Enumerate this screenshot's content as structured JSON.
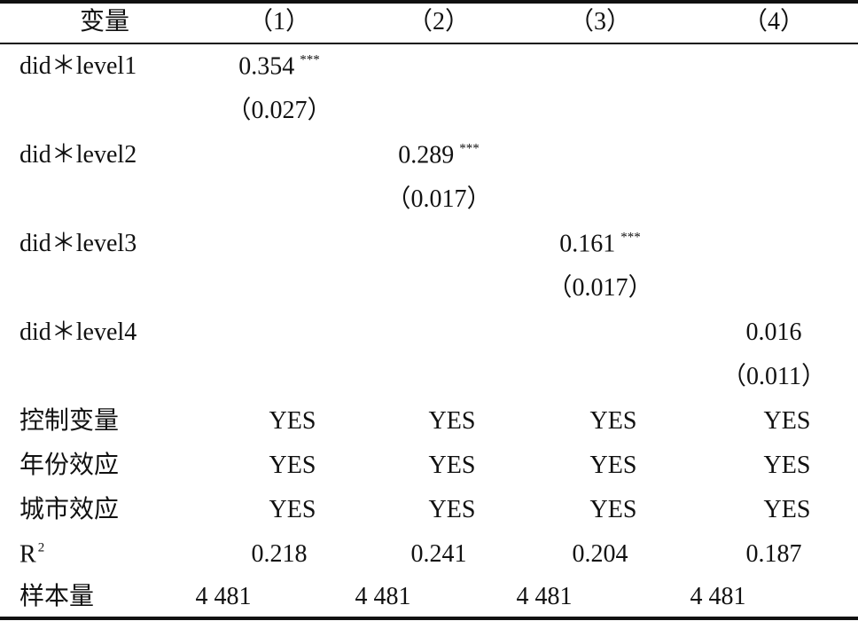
{
  "header": [
    "变量",
    "（1）",
    "（2）",
    "（3）",
    "（4）"
  ],
  "interactions": [
    {
      "label": "did＊level1",
      "coef": 0.354,
      "stars": "***",
      "se": "（0.027）"
    },
    {
      "label": "did＊level2",
      "coef": 0.289,
      "stars": "***",
      "se": "（0.017）"
    },
    {
      "label": "did＊level3",
      "coef": 0.161,
      "stars": "***",
      "se": "（0.017）"
    },
    {
      "label": "did＊level4",
      "coef": 0.016,
      "se": "（0.011）"
    }
  ],
  "indicator_rows": [
    {
      "label": "控制变量",
      "values": [
        "YES",
        "YES",
        "YES",
        "YES"
      ]
    },
    {
      "label": "年份效应",
      "values": [
        "YES",
        "YES",
        "YES",
        "YES"
      ]
    },
    {
      "label": "城市效应",
      "values": [
        "YES",
        "YES",
        "YES",
        "YES"
      ]
    }
  ],
  "r2": {
    "label": "R",
    "sup": "2",
    "values": [
      0.218,
      0.241,
      0.204,
      0.187
    ]
  },
  "n": {
    "label": "样本量",
    "values": [
      "4 481",
      "4 481",
      "4 481",
      "4 481"
    ]
  }
}
